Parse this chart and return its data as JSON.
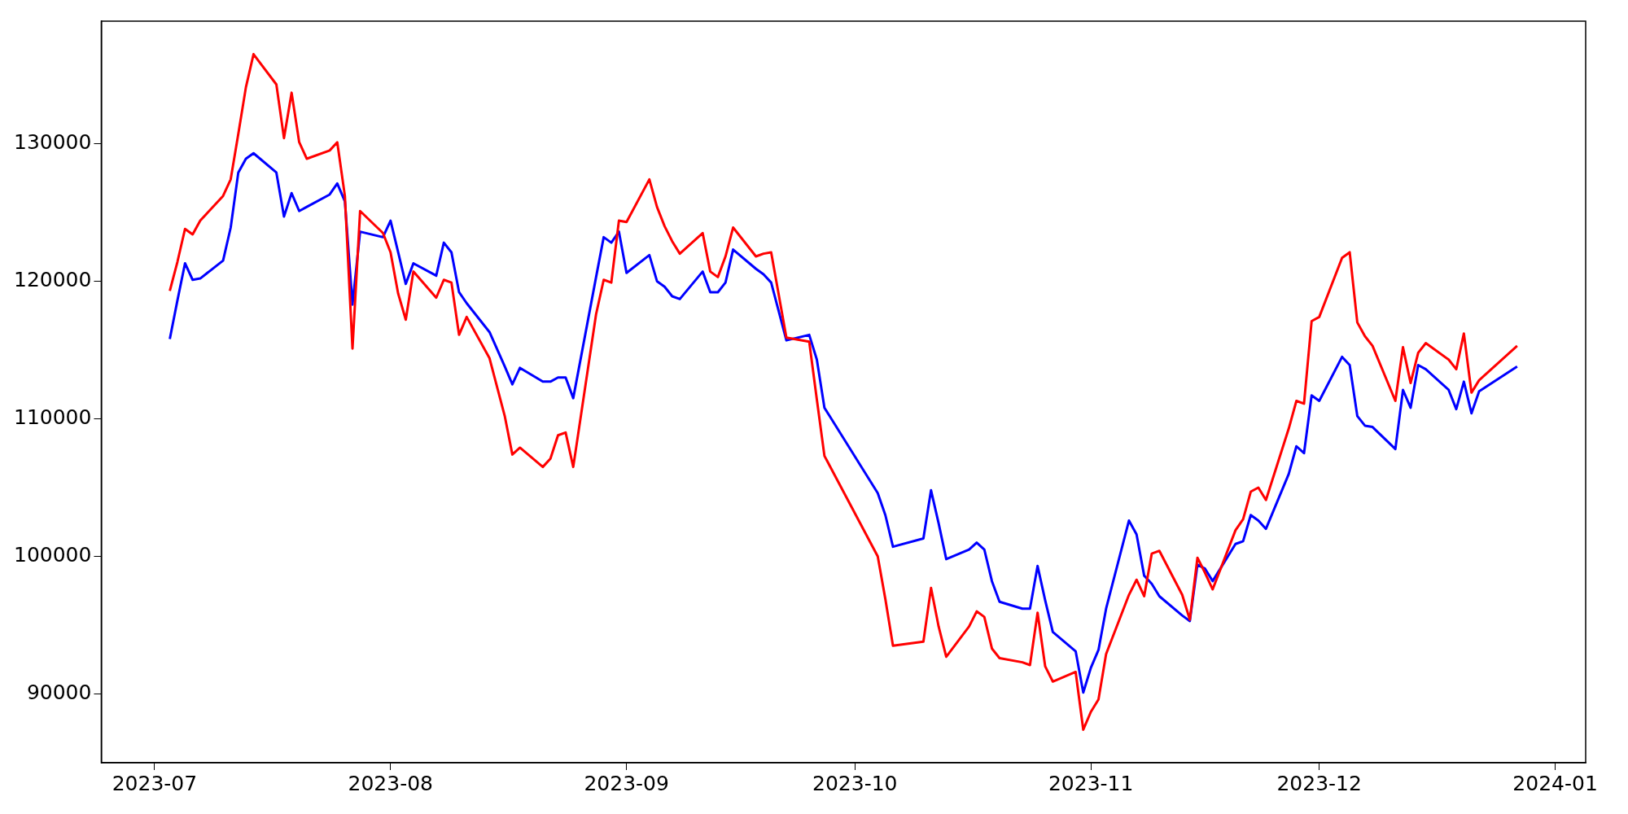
{
  "chart_data": {
    "type": "line",
    "grid": false,
    "legend": false,
    "marker": "none",
    "line_style": "solid",
    "x": [
      "2023-07-03",
      "2023-07-04",
      "2023-07-05",
      "2023-07-06",
      "2023-07-07",
      "2023-07-10",
      "2023-07-11",
      "2023-07-12",
      "2023-07-13",
      "2023-07-14",
      "2023-07-17",
      "2023-07-18",
      "2023-07-19",
      "2023-07-20",
      "2023-07-21",
      "2023-07-24",
      "2023-07-25",
      "2023-07-26",
      "2023-07-27",
      "2023-07-28",
      "2023-07-31",
      "2023-08-01",
      "2023-08-02",
      "2023-08-03",
      "2023-08-04",
      "2023-08-07",
      "2023-08-08",
      "2023-08-09",
      "2023-08-10",
      "2023-08-11",
      "2023-08-14",
      "2023-08-16",
      "2023-08-17",
      "2023-08-18",
      "2023-08-21",
      "2023-08-22",
      "2023-08-23",
      "2023-08-24",
      "2023-08-25",
      "2023-08-28",
      "2023-08-29",
      "2023-08-30",
      "2023-08-31",
      "2023-09-01",
      "2023-09-04",
      "2023-09-05",
      "2023-09-06",
      "2023-09-07",
      "2023-09-08",
      "2023-09-11",
      "2023-09-12",
      "2023-09-13",
      "2023-09-14",
      "2023-09-15",
      "2023-09-18",
      "2023-09-19",
      "2023-09-20",
      "2023-09-22",
      "2023-09-25",
      "2023-09-26",
      "2023-09-27",
      "2023-10-04",
      "2023-10-05",
      "2023-10-06",
      "2023-10-10",
      "2023-10-11",
      "2023-10-12",
      "2023-10-13",
      "2023-10-16",
      "2023-10-17",
      "2023-10-18",
      "2023-10-19",
      "2023-10-20",
      "2023-10-23",
      "2023-10-24",
      "2023-10-25",
      "2023-10-26",
      "2023-10-27",
      "2023-10-30",
      "2023-10-31",
      "2023-11-01",
      "2023-11-02",
      "2023-11-03",
      "2023-11-06",
      "2023-11-07",
      "2023-11-08",
      "2023-11-09",
      "2023-11-10",
      "2023-11-13",
      "2023-11-14",
      "2023-11-15",
      "2023-11-16",
      "2023-11-17",
      "2023-11-20",
      "2023-11-21",
      "2023-11-22",
      "2023-11-23",
      "2023-11-24",
      "2023-11-27",
      "2023-11-28",
      "2023-11-29",
      "2023-11-30",
      "2023-12-01",
      "2023-12-04",
      "2023-12-05",
      "2023-12-06",
      "2023-12-07",
      "2023-12-08",
      "2023-12-11",
      "2023-12-12",
      "2023-12-13",
      "2023-12-14",
      "2023-12-15",
      "2023-12-18",
      "2023-12-19",
      "2023-12-20",
      "2023-12-21",
      "2023-12-22",
      "2023-12-27"
    ],
    "series": [
      {
        "color": "#ff0000",
        "values": [
          119300,
          121400,
          123800,
          123400,
          124400,
          126200,
          127400,
          130700,
          134100,
          136500,
          134300,
          130400,
          133700,
          130100,
          128900,
          129500,
          130100,
          126200,
          115100,
          125100,
          123500,
          122100,
          119100,
          117200,
          120700,
          118800,
          120100,
          119900,
          116100,
          117400,
          114400,
          110200,
          107400,
          107900,
          106500,
          107100,
          108800,
          109000,
          106500,
          117600,
          120100,
          119900,
          124400,
          124300,
          127400,
          125400,
          124000,
          122900,
          122000,
          123500,
          120700,
          120300,
          121800,
          123900,
          121800,
          122000,
          122100,
          115900,
          115600,
          111400,
          107300,
          100000,
          96900,
          93500,
          93800,
          97700,
          94900,
          92700,
          94900,
          96000,
          95600,
          93300,
          92600,
          92300,
          92100,
          95900,
          92000,
          90900,
          91600,
          87400,
          88700,
          89600,
          92900,
          97200,
          98300,
          97100,
          100200,
          100400,
          97200,
          95400,
          99900,
          98800,
          97600,
          101900,
          102700,
          104700,
          105000,
          104100,
          109300,
          111300,
          111100,
          117100,
          117400,
          121700,
          122100,
          117000,
          116000,
          115300,
          111300,
          115200,
          112600,
          114800,
          115500,
          114300,
          113600,
          116200,
          111900,
          112800,
          115300
        ]
      },
      {
        "color": "#0000ff",
        "values": [
          115800,
          118600,
          121300,
          120100,
          120200,
          121500,
          123900,
          127900,
          128900,
          129300,
          127900,
          124700,
          126400,
          125100,
          125400,
          126300,
          127100,
          125800,
          118300,
          123600,
          123200,
          124400,
          122100,
          119800,
          121300,
          120400,
          122800,
          122100,
          119200,
          118400,
          116300,
          113800,
          112500,
          113700,
          112700,
          112700,
          113000,
          113000,
          111500,
          120300,
          123200,
          122800,
          123600,
          120600,
          121900,
          120000,
          119600,
          118900,
          118700,
          120700,
          119200,
          119200,
          119900,
          122300,
          120900,
          120500,
          119900,
          115700,
          116100,
          114300,
          110800,
          104600,
          103000,
          100700,
          101300,
          104800,
          102400,
          99800,
          100500,
          101000,
          100500,
          98200,
          96700,
          96200,
          96200,
          99300,
          96800,
          94500,
          93100,
          90100,
          91900,
          93200,
          96200,
          102600,
          101600,
          98600,
          98000,
          97100,
          95700,
          95300,
          99400,
          99100,
          98200,
          100900,
          101100,
          103000,
          102600,
          102000,
          106000,
          108000,
          107500,
          111700,
          111300,
          114500,
          113900,
          110200,
          109500,
          109400,
          107800,
          112100,
          110800,
          113900,
          113600,
          112100,
          110700,
          112700,
          110400,
          112000,
          113800
        ]
      }
    ],
    "xlim": [
      "2023-06-24",
      "2024-01-05"
    ],
    "xticks": [
      {
        "value": "2023-07-01",
        "label": "2023-07"
      },
      {
        "value": "2023-08-01",
        "label": "2023-08"
      },
      {
        "value": "2023-09-01",
        "label": "2023-09"
      },
      {
        "value": "2023-10-01",
        "label": "2023-10"
      },
      {
        "value": "2023-11-01",
        "label": "2023-11"
      },
      {
        "value": "2023-12-01",
        "label": "2023-12"
      },
      {
        "value": "2024-01-01",
        "label": "2024-01"
      }
    ],
    "ylim": [
      85000,
      138900
    ],
    "yticks": [
      90000,
      100000,
      110000,
      120000,
      130000
    ]
  }
}
